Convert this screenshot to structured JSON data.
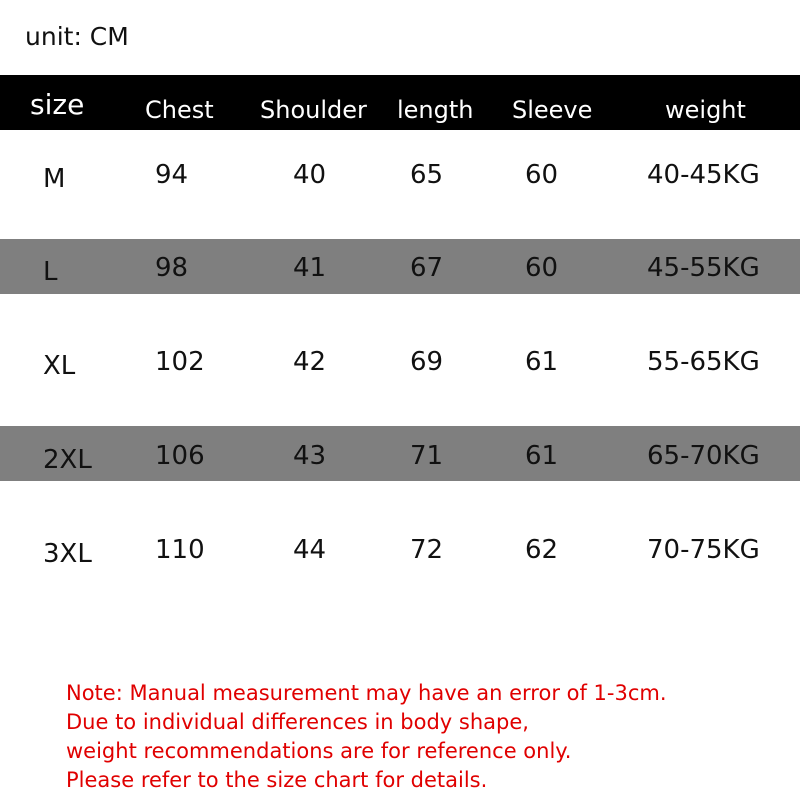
{
  "unit_label": "unit: CM",
  "colors": {
    "header_bg": "#000000",
    "band_bg": "#7f7f7f",
    "note_text": "#e00000"
  },
  "table": {
    "headers": [
      "size",
      "Chest",
      "Shoulder",
      "length",
      "Sleeve",
      "weight"
    ],
    "rows": [
      [
        "M",
        "94",
        "40",
        "65",
        "60",
        "40-45KG"
      ],
      [
        "L",
        "98",
        "41",
        "67",
        "60",
        "45-55KG"
      ],
      [
        "XL",
        "102",
        "42",
        "69",
        "61",
        "55-65KG"
      ],
      [
        "2XL",
        "106",
        "43",
        "71",
        "61",
        "65-70KG"
      ],
      [
        "3XL",
        "110",
        "44",
        "72",
        "62",
        "70-75KG"
      ]
    ]
  },
  "note": [
    "Note: Manual measurement may have an error of 1-3cm.",
    "Due to individual differences in body shape,",
    "weight recommendations are for reference only.",
    "Please refer to the size chart for details."
  ]
}
